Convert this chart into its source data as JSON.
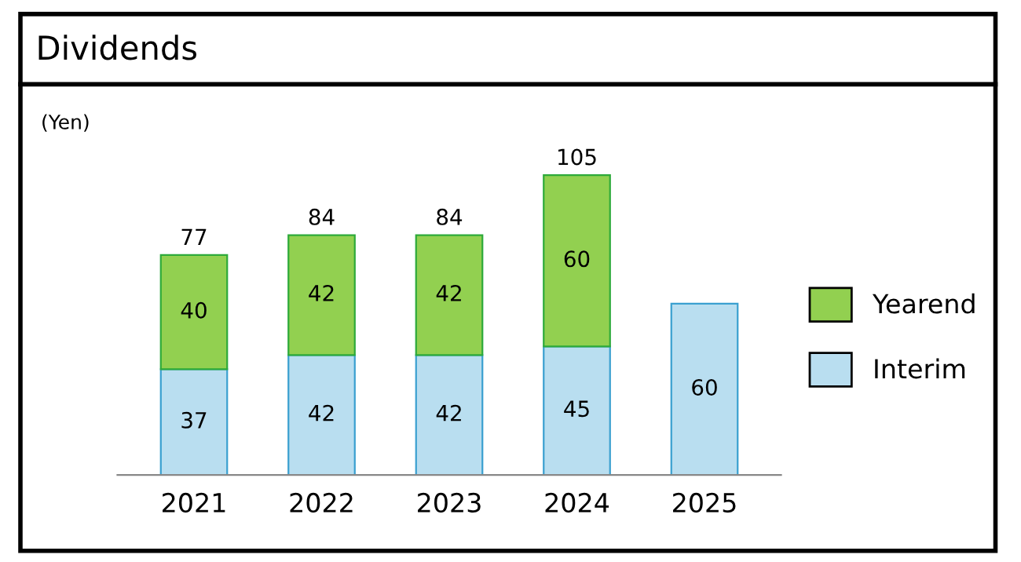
{
  "chart_data": {
    "type": "bar",
    "title": "Dividends",
    "ylabel": "(Yen)",
    "categories": [
      "2021",
      "2022",
      "2023",
      "2024",
      "2025"
    ],
    "stacked": true,
    "data_labels": true,
    "legend": "right",
    "grid": false,
    "series": [
      {
        "name": "Interim",
        "color": "#b9def0",
        "values": [
          37,
          42,
          42,
          45,
          60
        ]
      },
      {
        "name": "Yearend",
        "color": "#92d050",
        "values": [
          40,
          42,
          42,
          60,
          null
        ]
      }
    ],
    "totals": [
      "77",
      "84",
      "84",
      "105",
      null
    ]
  }
}
